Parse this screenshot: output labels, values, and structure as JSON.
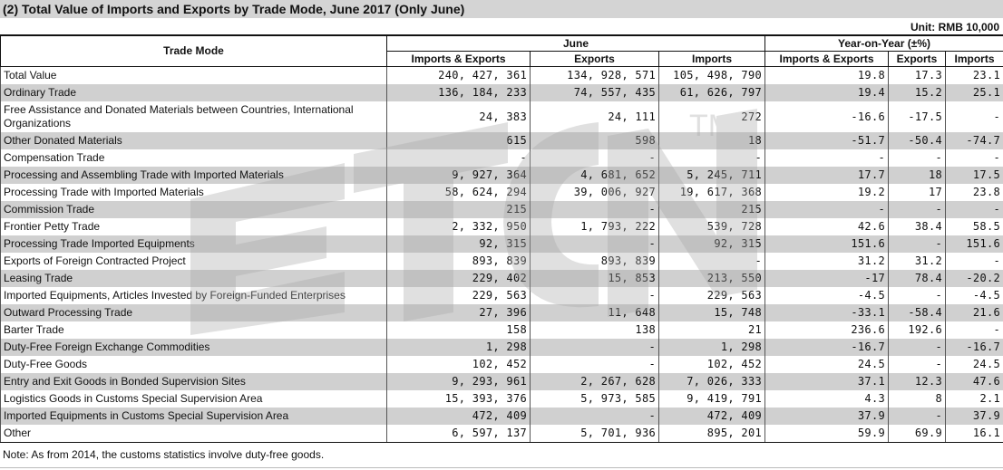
{
  "title": "(2) Total Value of Imports and Exports by Trade Mode, June 2017 (Only June)",
  "unit": "Unit: RMB 10,000",
  "headers": {
    "trade_mode": "Trade Mode",
    "june": "June",
    "yoy": "Year-on-Year (±%)",
    "imports_exports": "Imports & Exports",
    "exports": "Exports",
    "imports": "Imports"
  },
  "watermark": {
    "logo_text": "ETCN",
    "tm": "TM"
  },
  "rows": [
    {
      "mode": "Total Value",
      "ie": "240, 427, 361",
      "ex": "134, 928, 571",
      "im": "105, 498, 790",
      "yie": "19.8",
      "yex": "17.3",
      "yim": "23.1"
    },
    {
      "mode": "Ordinary Trade",
      "ie": "136, 184, 233",
      "ex": "74, 557, 435",
      "im": "61, 626, 797",
      "yie": "19.4",
      "yex": "15.2",
      "yim": "25.1"
    },
    {
      "mode": "Free Assistance and Donated Materials between Countries, International Organizations",
      "ie": "24, 383",
      "ex": "24, 111",
      "im": "272",
      "yie": "-16.6",
      "yex": "-17.5",
      "yim": "-"
    },
    {
      "mode": "Other Donated Materials",
      "ie": "615",
      "ex": "598",
      "im": "18",
      "yie": "-51.7",
      "yex": "-50.4",
      "yim": "-74.7"
    },
    {
      "mode": "Compensation Trade",
      "ie": "-",
      "ex": "-",
      "im": "-",
      "yie": "-",
      "yex": "-",
      "yim": "-"
    },
    {
      "mode": "Processing and Assembling Trade with Imported Materials",
      "ie": "9, 927, 364",
      "ex": "4, 681, 652",
      "im": "5, 245, 711",
      "yie": "17.7",
      "yex": "18",
      "yim": "17.5"
    },
    {
      "mode": "Processing Trade with Imported Materials",
      "ie": "58, 624, 294",
      "ex": "39, 006, 927",
      "im": "19, 617, 368",
      "yie": "19.2",
      "yex": "17",
      "yim": "23.8"
    },
    {
      "mode": "Commission Trade",
      "ie": "215",
      "ex": "-",
      "im": "215",
      "yie": "-",
      "yex": "-",
      "yim": "-"
    },
    {
      "mode": "Frontier Petty Trade",
      "ie": "2, 332, 950",
      "ex": "1, 793, 222",
      "im": "539, 728",
      "yie": "42.6",
      "yex": "38.4",
      "yim": "58.5"
    },
    {
      "mode": "Processing Trade Imported Equipments",
      "ie": "92, 315",
      "ex": "-",
      "im": "92, 315",
      "yie": "151.6",
      "yex": "-",
      "yim": "151.6"
    },
    {
      "mode": "Exports of Foreign Contracted Project",
      "ie": "893, 839",
      "ex": "893, 839",
      "im": "-",
      "yie": "31.2",
      "yex": "31.2",
      "yim": "-"
    },
    {
      "mode": "Leasing Trade",
      "ie": "229, 402",
      "ex": "15, 853",
      "im": "213, 550",
      "yie": "-17",
      "yex": "78.4",
      "yim": "-20.2"
    },
    {
      "mode": "Imported Equipments, Articles Invested by Foreign-Funded Enterprises",
      "ie": "229, 563",
      "ex": "-",
      "im": "229, 563",
      "yie": "-4.5",
      "yex": "-",
      "yim": "-4.5"
    },
    {
      "mode": "Outward Processing Trade",
      "ie": "27, 396",
      "ex": "11, 648",
      "im": "15, 748",
      "yie": "-33.1",
      "yex": "-58.4",
      "yim": "21.6"
    },
    {
      "mode": "Barter Trade",
      "ie": "158",
      "ex": "138",
      "im": "21",
      "yie": "236.6",
      "yex": "192.6",
      "yim": "-"
    },
    {
      "mode": "Duty-Free Foreign Exchange Commodities",
      "ie": "1, 298",
      "ex": "-",
      "im": "1, 298",
      "yie": "-16.7",
      "yex": "-",
      "yim": "-16.7"
    },
    {
      "mode": "Duty-Free Goods",
      "ie": "102, 452",
      "ex": "-",
      "im": "102, 452",
      "yie": "24.5",
      "yex": "-",
      "yim": "24.5"
    },
    {
      "mode": "Entry and Exit Goods in Bonded Supervision Sites",
      "ie": "9, 293, 961",
      "ex": "2, 267, 628",
      "im": "7, 026, 333",
      "yie": "37.1",
      "yex": "12.3",
      "yim": "47.6"
    },
    {
      "mode": "Logistics Goods in Customs Special Supervision Area",
      "ie": "15, 393, 376",
      "ex": "5, 973, 585",
      "im": "9, 419, 791",
      "yie": "4.3",
      "yex": "8",
      "yim": "2.1"
    },
    {
      "mode": "Imported Equipments in Customs Special Supervision Area",
      "ie": "472, 409",
      "ex": "-",
      "im": "472, 409",
      "yie": "37.9",
      "yex": "-",
      "yim": "37.9"
    },
    {
      "mode": "Other",
      "ie": "6, 597, 137",
      "ex": "5, 701, 936",
      "im": "895, 201",
      "yie": "59.9",
      "yex": "69.9",
      "yim": "16.1"
    }
  ],
  "note": "Note: As from 2014, the customs statistics involve duty-free goods."
}
